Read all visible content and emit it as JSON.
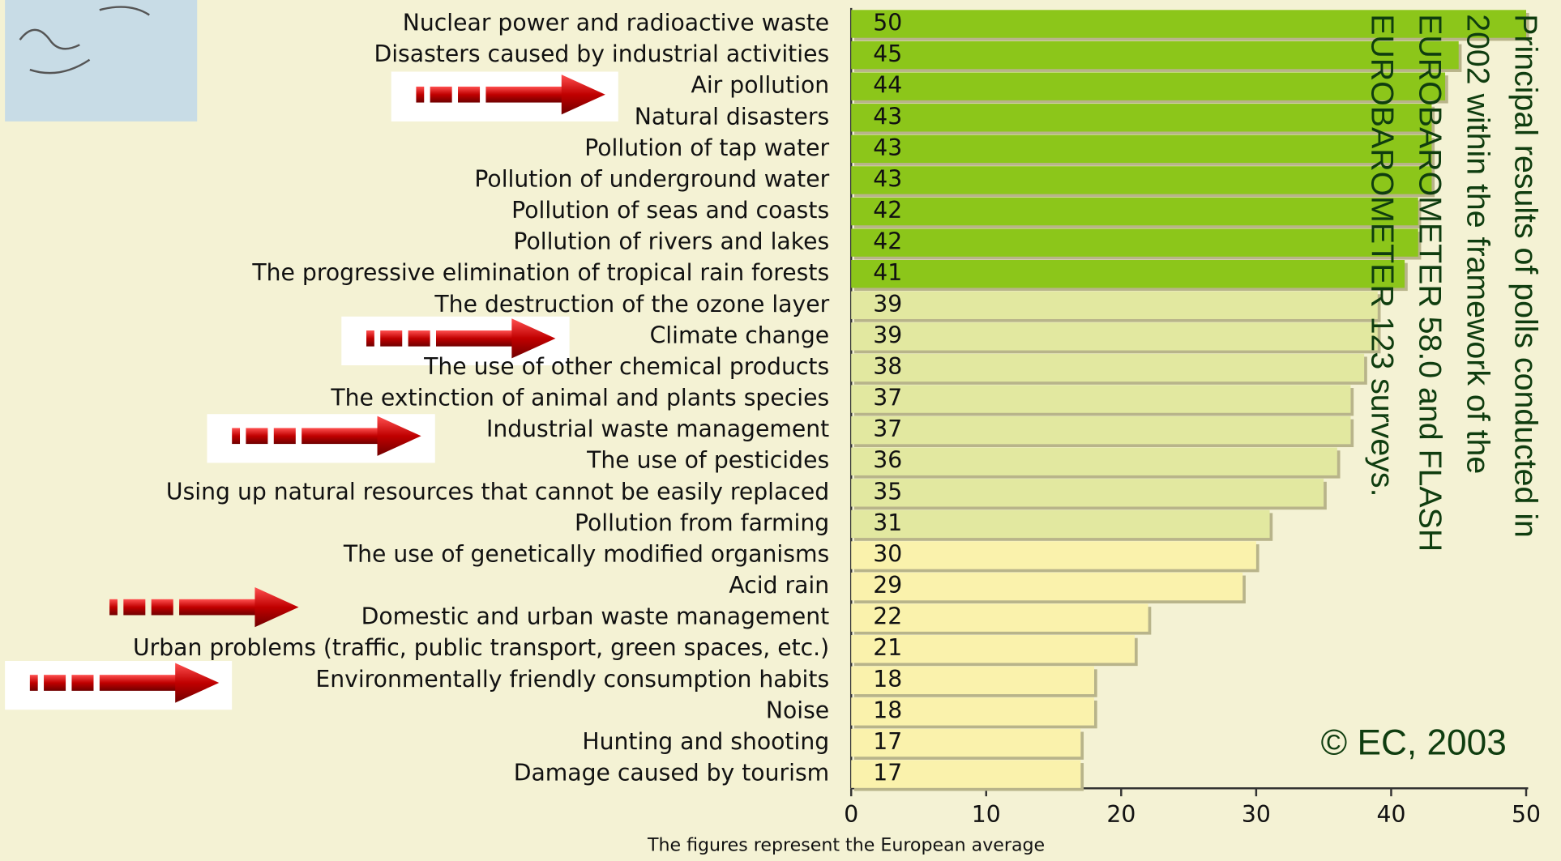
{
  "chart_data": {
    "type": "bar",
    "orientation": "horizontal",
    "categories": [
      "Nuclear power and radioactive waste",
      "Disasters caused by industrial activities",
      "Air pollution",
      "Natural disasters",
      "Pollution of tap water",
      "Pollution of underground water",
      "Pollution of seas and coasts",
      "Pollution of rivers and lakes",
      "The progressive elimination of tropical rain forests",
      "The destruction of the ozone layer",
      "Climate change",
      "The use of other chemical products",
      "The extinction of animal and plants species",
      "Industrial waste management",
      "The use of pesticides",
      "Using up natural resources that cannot be easily replaced",
      "Pollution from farming",
      "The use of genetically modified organisms",
      "Acid rain",
      "Domestic and urban waste management",
      "Urban problems (traffic, public transport, green spaces, etc.)",
      "Environmentally friendly consumption habits",
      "Noise",
      "Hunting and shooting",
      "Damage caused by tourism"
    ],
    "values": [
      50,
      45,
      44,
      43,
      43,
      43,
      42,
      42,
      41,
      39,
      39,
      38,
      37,
      37,
      36,
      35,
      31,
      30,
      29,
      22,
      21,
      18,
      18,
      17,
      17
    ],
    "colors": [
      "#8cc61a",
      "#8cc61a",
      "#8cc61a",
      "#8cc61a",
      "#8cc61a",
      "#8cc61a",
      "#8cc61a",
      "#8cc61a",
      "#8cc61a",
      "#e2e8a0",
      "#e2e8a0",
      "#e2e8a0",
      "#e2e8a0",
      "#e2e8a0",
      "#e2e8a0",
      "#e2e8a0",
      "#e2e8a0",
      "#faf2ac",
      "#faf2ac",
      "#faf2ac",
      "#faf2ac",
      "#faf2ac",
      "#faf2ac",
      "#faf2ac",
      "#faf2ac"
    ],
    "xlim": [
      0,
      50
    ],
    "xticks": [
      0,
      10,
      20,
      30,
      40,
      50
    ],
    "footnote": "The figures represent the European average",
    "annotation_lines": [
      "Principal results of polls conducted in",
      "2002 within the framework of the",
      "EUROBAROMETER 58.0 and FLASH",
      "EUROBAROMETER 123 surveys."
    ],
    "copyright": "© EC, 2003"
  }
}
